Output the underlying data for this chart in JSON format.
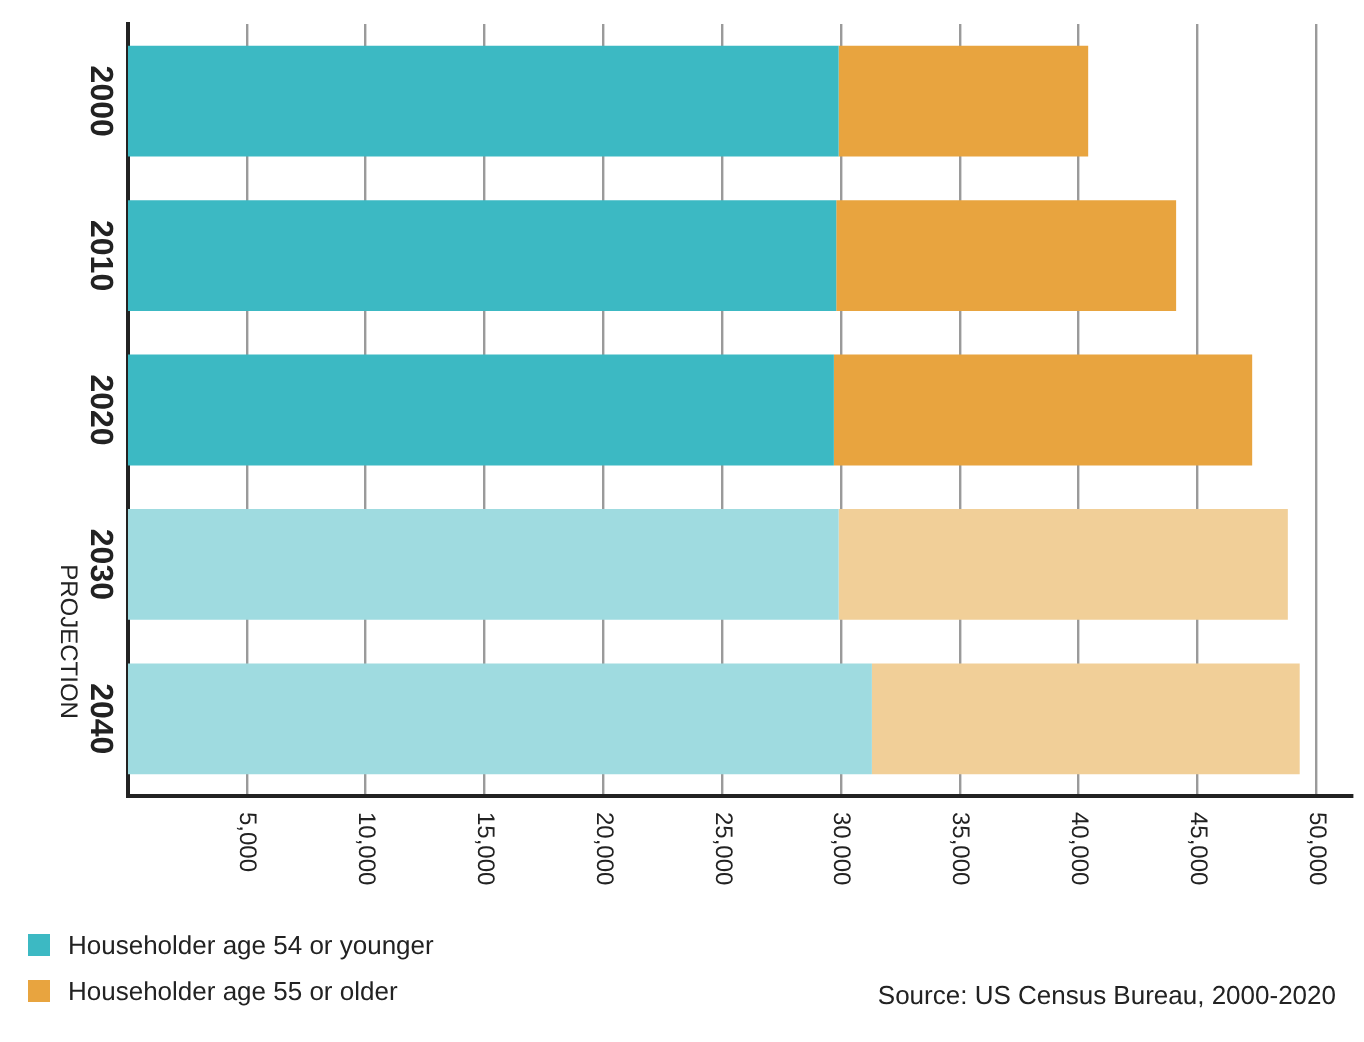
{
  "chart_data": {
    "type": "bar",
    "orientation": "horizontal",
    "stacked": true,
    "categories": [
      "2000",
      "2010",
      "2020",
      "2030",
      "2040"
    ],
    "series": [
      {
        "name": "Householder age 54 or younger",
        "color": "#3cb9c3",
        "colors": [
          "#3cb9c3",
          "#3cb9c3",
          "#3cb9c3",
          "#9fdbe0",
          "#9fdbe0"
        ],
        "values": [
          29900,
          29800,
          29700,
          29900,
          31300
        ]
      },
      {
        "name": "Householder age 55 or older",
        "color": "#e8a43f",
        "colors": [
          "#e8a43f",
          "#e8a43f",
          "#e8a43f",
          "#f1cf98",
          "#f1cf98"
        ],
        "values": [
          10500,
          14300,
          17600,
          18900,
          18000
        ]
      }
    ],
    "xlim": [
      0,
      51500
    ],
    "xticks": [
      {
        "value": 5000,
        "label": "5,000"
      },
      {
        "value": 10000,
        "label": "10,000"
      },
      {
        "value": 15000,
        "label": "15,000"
      },
      {
        "value": 20000,
        "label": "20,000"
      },
      {
        "value": 25000,
        "label": "25,000"
      },
      {
        "value": 30000,
        "label": "30,000"
      },
      {
        "value": 35000,
        "label": "35,000"
      },
      {
        "value": 40000,
        "label": "40,000"
      },
      {
        "value": 45000,
        "label": "45,000"
      },
      {
        "value": 50000,
        "label": "50,000"
      }
    ],
    "grid": "x",
    "legend": "bottom left",
    "annotations": [
      "PROJECTION",
      "Source: US Census Bureau, 2000-2020"
    ]
  }
}
